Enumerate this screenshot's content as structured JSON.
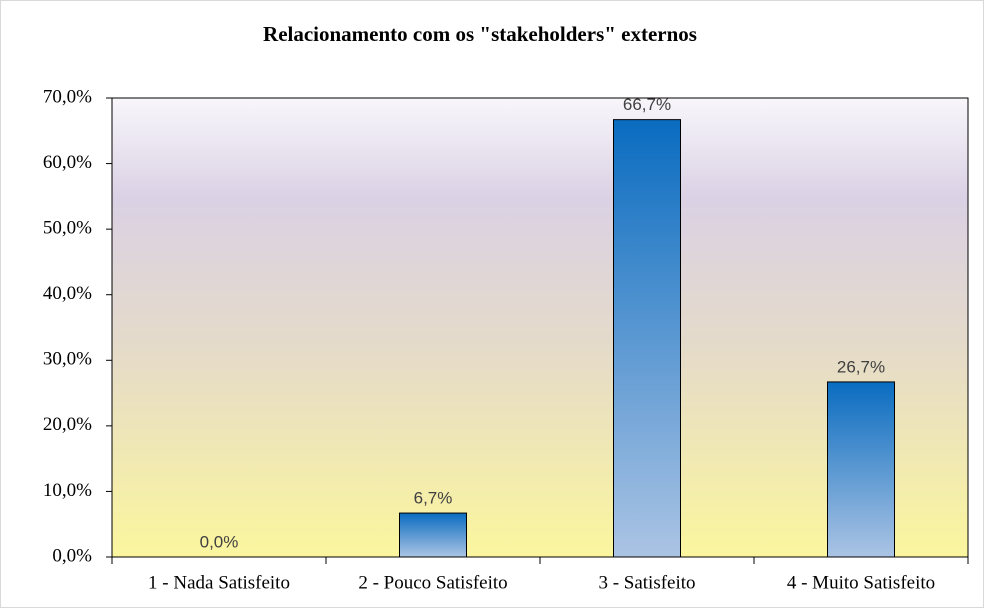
{
  "chart_data": {
    "type": "bar",
    "title": "Relacionamento com os \"stakeholders\" externos",
    "categories": [
      "1 - Nada Satisfeito",
      "2 - Pouco Satisfeito",
      "3 - Satisfeito",
      "4 - Muito Satisfeito"
    ],
    "values": [
      0,
      6.7,
      66.7,
      26.7
    ],
    "value_labels": [
      "0,0%",
      "6,7%",
      "66,7%",
      "26,7%"
    ],
    "color": [
      "#0a6cc0",
      "#abc4e4"
    ],
    "ylim": [
      0,
      70
    ],
    "yticks": [
      {
        "value": 0,
        "label": "0,0%"
      },
      {
        "value": 10,
        "label": "10,0%"
      },
      {
        "value": 20,
        "label": "20,0%"
      },
      {
        "value": 30,
        "label": "30,0%"
      },
      {
        "value": 40,
        "label": "40,0%"
      },
      {
        "value": 50,
        "label": "50,0%"
      },
      {
        "value": 60,
        "label": "60,0%"
      },
      {
        "value": 70,
        "label": "70,0%"
      }
    ],
    "grid": false
  }
}
